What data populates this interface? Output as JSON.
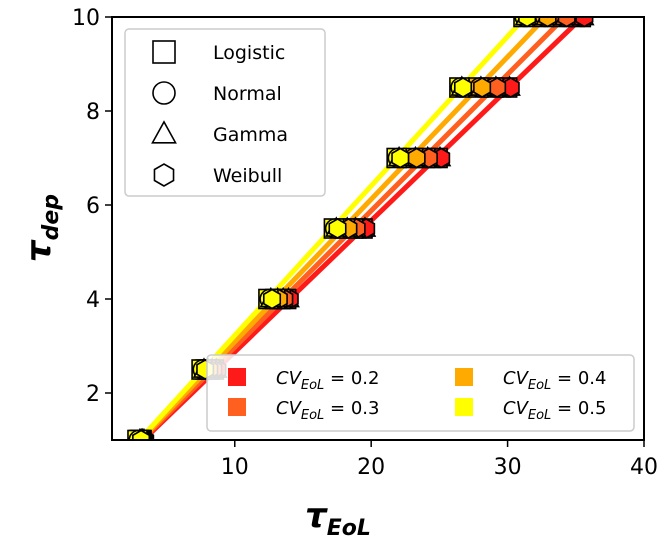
{
  "chart_data": {
    "type": "line",
    "xlabel": "τ",
    "xlabel_sub": "EoL",
    "ylabel": "τ",
    "ylabel_sub": "dep",
    "xlim": [
      1,
      40
    ],
    "ylim": [
      1,
      10
    ],
    "xticks": [
      10,
      20,
      30,
      40
    ],
    "yticks": [
      2,
      4,
      6,
      8,
      10
    ],
    "y_levels": [
      1,
      2.5,
      4,
      5.5,
      7,
      8.5,
      10
    ],
    "colors": {
      "cv02": "#ff1a1a",
      "cv03": "#ff6020",
      "cv04": "#ffaa00",
      "cv05": "#ffff00"
    },
    "series": [
      {
        "name": "CV_EoL = 0.2",
        "cv_value": "0.2",
        "color": "#ff1a1a",
        "x": [
          3.3,
          8.6,
          13.9,
          19.5,
          25.0,
          30.1,
          35.5
        ],
        "y": [
          1,
          2.5,
          4,
          5.5,
          7,
          8.5,
          10
        ]
      },
      {
        "name": "CV_EoL = 0.3",
        "cv_value": "0.3",
        "color": "#ff6020",
        "x": [
          3.2,
          8.3,
          13.5,
          18.8,
          24.1,
          29.1,
          34.2
        ],
        "y": [
          1,
          2.5,
          4,
          5.5,
          7,
          8.5,
          10
        ]
      },
      {
        "name": "CV_EoL = 0.4",
        "cv_value": "0.4",
        "color": "#ffaa00",
        "x": [
          3.1,
          8.0,
          13.1,
          18.2,
          23.2,
          28.0,
          32.8
        ],
        "y": [
          1,
          2.5,
          4,
          5.5,
          7,
          8.5,
          10
        ]
      },
      {
        "name": "CV_EoL = 0.5",
        "cv_value": "0.5",
        "color": "#ffff00",
        "x": [
          3.0,
          7.7,
          12.6,
          17.4,
          22.0,
          26.6,
          31.3
        ],
        "y": [
          1,
          2.5,
          4,
          5.5,
          7,
          8.5,
          10
        ]
      }
    ],
    "marker_legend": [
      {
        "label": "Logistic",
        "marker": "square"
      },
      {
        "label": "Normal",
        "marker": "circle"
      },
      {
        "label": "Gamma",
        "marker": "triangle"
      },
      {
        "label": "Weibull",
        "marker": "hexagon"
      }
    ],
    "cv_legend_prefix": "CV",
    "cv_legend_sub": "EoL",
    "cv_legend_eq": "=",
    "legend_placement": [
      "upper-left",
      "lower-right"
    ],
    "grid": false
  }
}
